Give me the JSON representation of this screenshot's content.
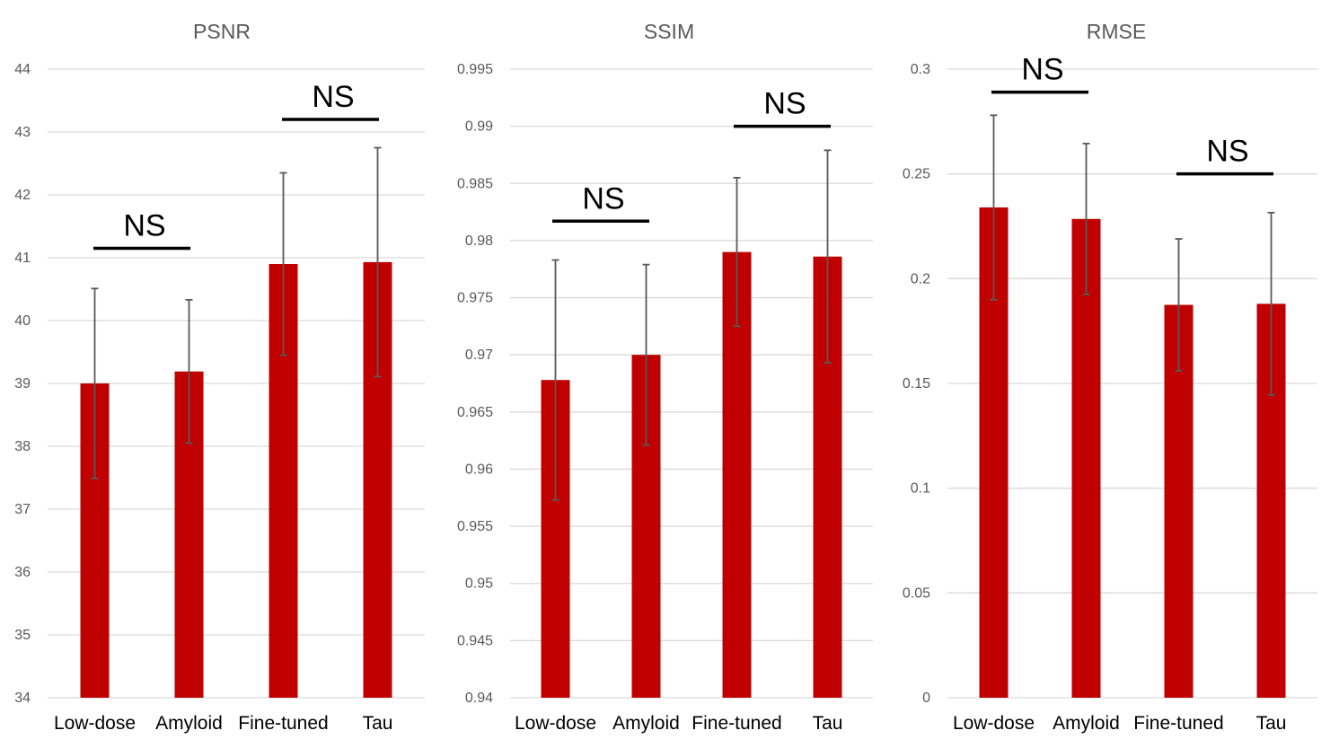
{
  "chart_data": [
    {
      "type": "bar",
      "title": "PSNR",
      "categories": [
        "Low-dose",
        "Amyloid",
        "Fine-tuned",
        "Tau"
      ],
      "values": [
        39.0,
        39.19,
        40.9,
        40.93
      ],
      "error": [
        1.51,
        1.14,
        1.45,
        1.82
      ],
      "ylim": [
        34,
        44
      ],
      "ticks": [
        34,
        35,
        36,
        37,
        38,
        39,
        40,
        41,
        42,
        43,
        44
      ],
      "tick_labels": [
        "34",
        "35",
        "36",
        "37",
        "38",
        "39",
        "40",
        "41",
        "42",
        "43",
        "44"
      ],
      "bar_color": "#c00000",
      "grid": true,
      "significance": [
        {
          "label": "NS",
          "from": 0,
          "to": 1,
          "level": 41.15
        },
        {
          "label": "NS",
          "from": 2,
          "to": 3,
          "level": 43.2
        }
      ]
    },
    {
      "type": "bar",
      "title": "SSIM",
      "categories": [
        "Low-dose",
        "Amyloid",
        "Fine-tuned",
        "Tau"
      ],
      "values": [
        0.9678,
        0.97,
        0.979,
        0.9786
      ],
      "error": [
        0.0105,
        0.0079,
        0.0065,
        0.0093
      ],
      "ylim": [
        0.94,
        0.995
      ],
      "ticks": [
        0.94,
        0.945,
        0.95,
        0.955,
        0.96,
        0.965,
        0.97,
        0.975,
        0.98,
        0.985,
        0.99,
        0.995
      ],
      "tick_labels": [
        "0.94",
        "0.945",
        "0.95",
        "0.955",
        "0.96",
        "0.965",
        "0.97",
        "0.975",
        "0.98",
        "0.985",
        "0.99",
        "0.995"
      ],
      "bar_color": "#c00000",
      "grid": true,
      "significance": [
        {
          "label": "NS",
          "from": 0,
          "to": 1,
          "level": 0.9817
        },
        {
          "label": "NS",
          "from": 2,
          "to": 3,
          "level": 0.99
        }
      ]
    },
    {
      "type": "bar",
      "title": "RMSE",
      "categories": [
        "Low-dose",
        "Amyloid",
        "Fine-tuned",
        "Tau"
      ],
      "values": [
        0.234,
        0.2285,
        0.1875,
        0.188
      ],
      "error": [
        0.044,
        0.036,
        0.0315,
        0.0435
      ],
      "ylim": [
        0,
        0.3
      ],
      "ticks": [
        0,
        0.05,
        0.1,
        0.15,
        0.2,
        0.25,
        0.3
      ],
      "tick_labels": [
        "0",
        "0.05",
        "0.1",
        "0.15",
        "0.2",
        "0.25",
        "0.3"
      ],
      "bar_color": "#c00000",
      "grid": true,
      "significance": [
        {
          "label": "NS",
          "from": 0,
          "to": 1,
          "level": 0.289
        },
        {
          "label": "NS",
          "from": 2,
          "to": 3,
          "level": 0.25
        }
      ]
    }
  ]
}
